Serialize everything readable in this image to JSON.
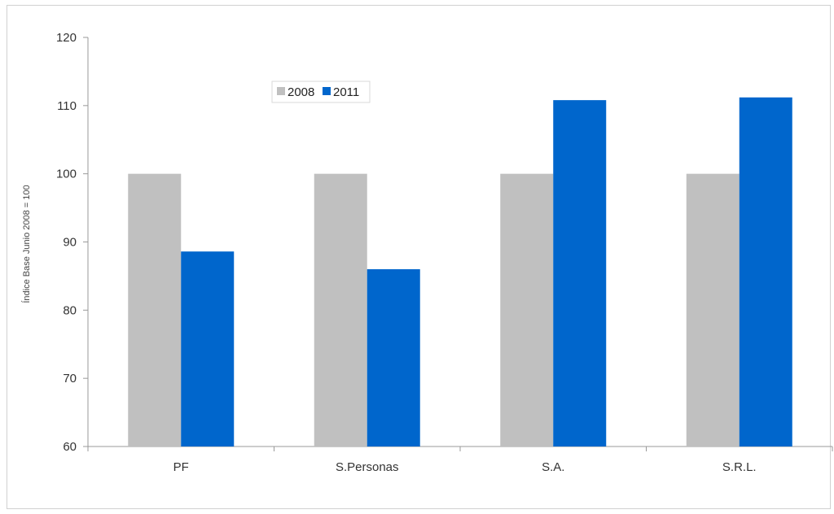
{
  "chart_data": {
    "type": "bar",
    "title": "",
    "ylabel": "Índice Base Junio 2008 = 100",
    "xlabel": "",
    "categories": [
      "PF",
      "S.Personas",
      "S.A.",
      "S.R.L."
    ],
    "series": [
      {
        "name": "2008",
        "color": "#c0c0c0",
        "values": [
          100,
          100,
          100,
          100
        ]
      },
      {
        "name": "2011",
        "color": "#0066cc",
        "values": [
          88.6,
          86.0,
          110.8,
          111.2
        ]
      }
    ],
    "ylim": [
      60,
      120
    ],
    "yticks": [
      60,
      70,
      80,
      90,
      100,
      110,
      120
    ],
    "grid": false,
    "legend_position": "top-left inside plot"
  }
}
